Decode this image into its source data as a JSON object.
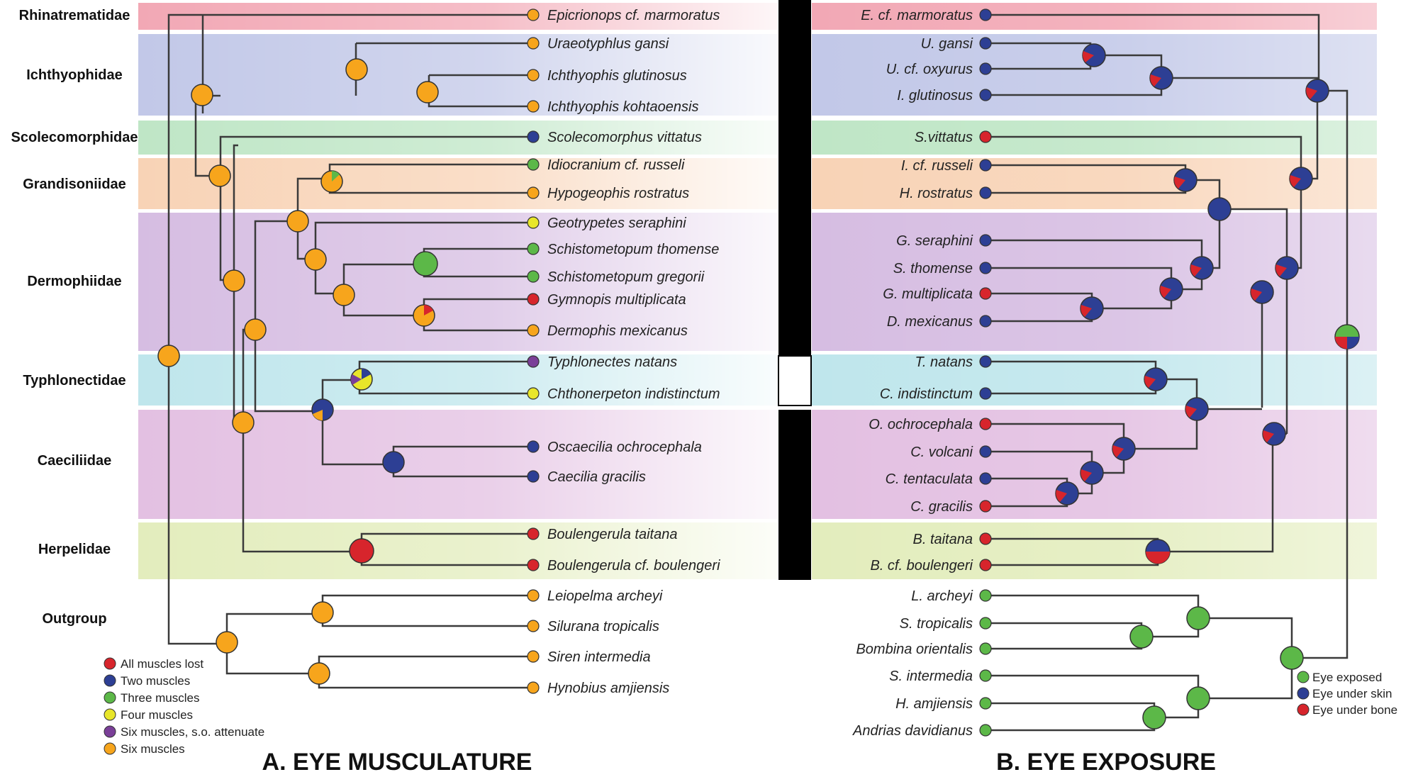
{
  "families": [
    "Rhinatrematidae",
    "Ichthyophidae",
    "Scolecomorphidae",
    "Grandisoniidae",
    "Dermophiidae",
    "Typhlonectidae",
    "Caeciliidae",
    "Herpelidae",
    "Outgroup"
  ],
  "panel_a": {
    "title": "A. EYE MUSCULATURE",
    "taxa": [
      {
        "name": "Epicrionops cf. marmoratus",
        "state": "six"
      },
      {
        "name": "Uraeotyphlus gansi",
        "state": "six"
      },
      {
        "name": "Ichthyophis glutinosus",
        "state": "six"
      },
      {
        "name": "Ichthyophis kohtaoensis",
        "state": "six"
      },
      {
        "name": "Scolecomorphus vittatus",
        "state": "two"
      },
      {
        "name": "Idiocranium cf. russeli",
        "state": "three"
      },
      {
        "name": "Hypogeophis rostratus",
        "state": "six"
      },
      {
        "name": "Geotrypetes seraphini",
        "state": "four"
      },
      {
        "name": "Schistometopum thomense",
        "state": "three"
      },
      {
        "name": "Schistometopum gregorii",
        "state": "three"
      },
      {
        "name": "Gymnopis multiplicata",
        "state": "lost"
      },
      {
        "name": "Dermophis mexicanus",
        "state": "six"
      },
      {
        "name": "Typhlonectes natans",
        "state": "sixso"
      },
      {
        "name": "Chthonerpeton indistinctum",
        "state": "four"
      },
      {
        "name": "Oscaecilia ochrocephala",
        "state": "two"
      },
      {
        "name": "Caecilia gracilis",
        "state": "two"
      },
      {
        "name": "Boulengerula taitana",
        "state": "lost"
      },
      {
        "name": "Boulengerula cf. boulengeri",
        "state": "lost"
      },
      {
        "name": "Leiopelma archeyi",
        "state": "six"
      },
      {
        "name": "Silurana tropicalis",
        "state": "six"
      },
      {
        "name": "Siren intermedia",
        "state": "six"
      },
      {
        "name": "Hynobius amjiensis",
        "state": "six"
      }
    ],
    "legend": [
      {
        "label": "All muscles lost",
        "color": "#d7252c"
      },
      {
        "label": "Two muscles",
        "color": "#2d3f94"
      },
      {
        "label": "Three muscles",
        "color": "#5cb848"
      },
      {
        "label": "Four muscles",
        "color": "#e8e62a"
      },
      {
        "label": "Six muscles, s.o. attenuate",
        "color": "#7a3f98"
      },
      {
        "label": "Six muscles",
        "color": "#f7a51c"
      }
    ]
  },
  "panel_b": {
    "title": "B. EYE EXPOSURE",
    "taxa": [
      {
        "name": "E. cf. marmoratus",
        "state": "skin"
      },
      {
        "name": "U. gansi",
        "state": "skin"
      },
      {
        "name": "U. cf. oxyurus",
        "state": "skin"
      },
      {
        "name": "I. glutinosus",
        "state": "skin"
      },
      {
        "name": "S.vittatus",
        "state": "bone"
      },
      {
        "name": "I. cf. russeli",
        "state": "skin"
      },
      {
        "name": "H. rostratus",
        "state": "skin"
      },
      {
        "name": "G. seraphini",
        "state": "skin"
      },
      {
        "name": "S. thomense",
        "state": "skin"
      },
      {
        "name": "G. multiplicata",
        "state": "bone"
      },
      {
        "name": "D. mexicanus",
        "state": "skin"
      },
      {
        "name": "T. natans",
        "state": "skin"
      },
      {
        "name": "C. indistinctum",
        "state": "skin"
      },
      {
        "name": "O. ochrocephala",
        "state": "bone"
      },
      {
        "name": "C. volcani",
        "state": "skin"
      },
      {
        "name": "C. tentaculata",
        "state": "skin"
      },
      {
        "name": "C. gracilis",
        "state": "bone"
      },
      {
        "name": "B. taitana",
        "state": "bone"
      },
      {
        "name": "B. cf. boulengeri",
        "state": "bone"
      },
      {
        "name": "L. archeyi",
        "state": "exposed"
      },
      {
        "name": "S. tropicalis",
        "state": "exposed"
      },
      {
        "name": "Bombina orientalis",
        "state": "exposed"
      },
      {
        "name": "S. intermedia",
        "state": "exposed"
      },
      {
        "name": "H. amjiensis",
        "state": "exposed"
      },
      {
        "name": "Andrias davidianus",
        "state": "exposed"
      }
    ],
    "legend": [
      {
        "label": "Eye exposed",
        "color": "#5cb848"
      },
      {
        "label": "Eye under skin",
        "color": "#2d3f94"
      },
      {
        "label": "Eye under bone",
        "color": "#d7252c"
      }
    ]
  },
  "colors": {
    "lost": "#d7252c",
    "two": "#2d3f94",
    "three": "#5cb848",
    "four": "#e8e62a",
    "sixso": "#7a3f98",
    "six": "#f7a51c",
    "exposed": "#5cb848",
    "skin": "#2d3f94",
    "bone": "#d7252c",
    "band_rhina": "#f2a8b5",
    "band_ichthy": "#c2c8e8",
    "band_scoleco": "#bfe6c6",
    "band_grand": "#f8d3b6",
    "band_dermo": "#d6bde2",
    "band_typhlo": "#bfe6ec",
    "band_caecil": "#e3c0e2",
    "band_herpel": "#e3edbd"
  }
}
